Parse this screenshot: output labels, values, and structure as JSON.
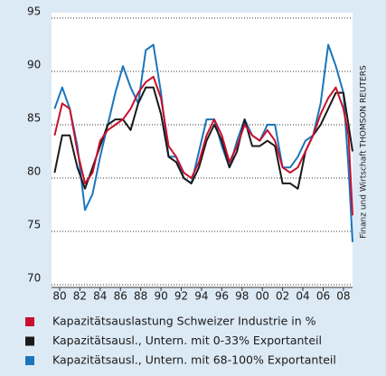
{
  "chart_data": {
    "type": "line",
    "source": "Finanz und Wirtschaft THOMSON REUTERS",
    "x": [
      1979.5,
      1980.25,
      1981,
      1981.75,
      1982.5,
      1983.25,
      1984,
      1984.75,
      1985.5,
      1986.25,
      1987,
      1987.75,
      1988.5,
      1989.25,
      1990,
      1990.75,
      1991.5,
      1992.25,
      1993,
      1993.75,
      1994.5,
      1995.25,
      1996,
      1996.75,
      1997.5,
      1998.25,
      1999,
      1999.75,
      2000.5,
      2001.25,
      2002,
      2002.75,
      2003.5,
      2004.25,
      2005,
      2005.75,
      2006.5,
      2007.25,
      2008,
      2008.5,
      2008.9
    ],
    "series": [
      {
        "name": "Kapazitätsauslastung Schweizer Industrie in %",
        "color": "#c8102e",
        "values": [
          84,
          87,
          86.5,
          82.5,
          79.5,
          80.5,
          83.5,
          84.5,
          85,
          85.5,
          86.5,
          88,
          89,
          89.5,
          87.5,
          83,
          82,
          80.5,
          80,
          81.5,
          84,
          85.5,
          84,
          81.5,
          83,
          85,
          84,
          83.5,
          84.5,
          83.5,
          81,
          80.5,
          81,
          82.5,
          84,
          86,
          87.5,
          88.5,
          86.5,
          84,
          76.5
        ]
      },
      {
        "name": "Kapazitätsausl., Untern. mit 0-33% Exportanteil",
        "color": "#1a1a1a",
        "values": [
          80.5,
          84,
          84,
          81,
          79,
          81,
          83,
          85,
          85.5,
          85.5,
          84.5,
          87,
          88.5,
          88.5,
          86,
          82,
          81.5,
          80,
          79.5,
          81,
          83.5,
          85,
          83.5,
          81,
          82.5,
          85.5,
          83,
          83,
          83.5,
          83,
          79.5,
          79.5,
          79,
          82.5,
          84,
          85,
          86.5,
          88,
          88,
          85,
          82.5
        ]
      },
      {
        "name": "Kapazitätsausl., Untern. mit 68-100% Exportanteil",
        "color": "#1a75bc",
        "values": [
          86.5,
          88.5,
          86.5,
          83,
          77,
          78.5,
          82,
          85,
          88,
          90.5,
          88.5,
          87,
          92,
          92.5,
          88,
          82,
          82,
          80,
          79.5,
          82.5,
          85.5,
          85.5,
          83,
          81,
          83.5,
          85.5,
          84,
          83.5,
          85,
          85,
          81,
          81,
          82,
          83.5,
          84,
          87,
          92.5,
          90.5,
          88,
          81,
          74
        ]
      }
    ],
    "xlim": [
      1979.2,
      2008.9
    ],
    "xticks": [
      {
        "value": 1980,
        "label": "80"
      },
      {
        "value": 1982,
        "label": "82"
      },
      {
        "value": 1984,
        "label": "84"
      },
      {
        "value": 1986,
        "label": "86"
      },
      {
        "value": 1988,
        "label": "88"
      },
      {
        "value": 1990,
        "label": "90"
      },
      {
        "value": 1992,
        "label": "92"
      },
      {
        "value": 1994,
        "label": "94"
      },
      {
        "value": 1996,
        "label": "96"
      },
      {
        "value": 1998,
        "label": "98"
      },
      {
        "value": 2000,
        "label": "00"
      },
      {
        "value": 2002,
        "label": "02"
      },
      {
        "value": 2004,
        "label": "04"
      },
      {
        "value": 2006,
        "label": "06"
      },
      {
        "value": 2008,
        "label": "08"
      }
    ],
    "ylim": [
      70,
      95
    ],
    "yticks": [
      70,
      75,
      80,
      85,
      90,
      95
    ],
    "grid": true
  }
}
